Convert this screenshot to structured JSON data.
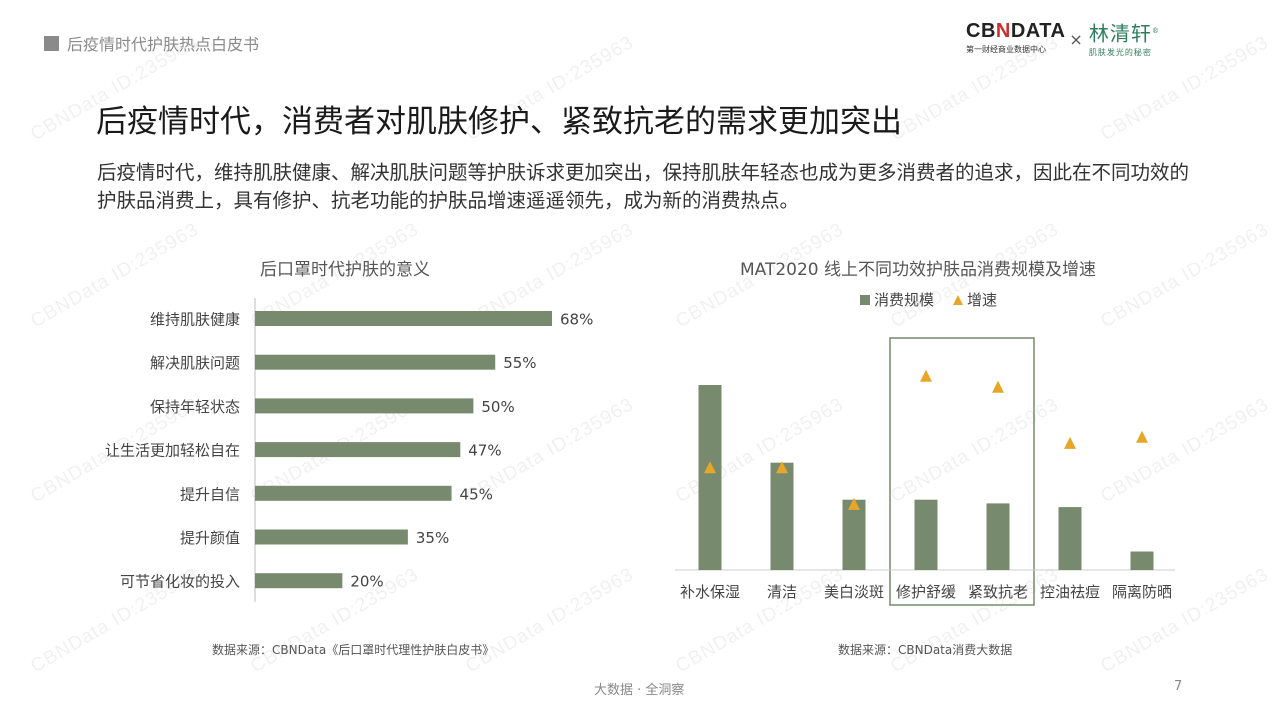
{
  "header": {
    "section": "后疫情时代护肤热点白皮书"
  },
  "logo": {
    "cbn": "CBNDATA",
    "cbn_pre": "CB",
    "cbn_n": "N",
    "cbn_post": "DATA",
    "cbn_sub": "第一财经商业数据中心",
    "x": "×",
    "partner": "林清轩",
    "partner_mark": "®",
    "partner_sub": "肌肤发光的秘密"
  },
  "title": "后疫情时代，消费者对肌肤修护、紧致抗老的需求更加突出",
  "description": "后疫情时代，维持肌肤健康、解决肌肤问题等护肤诉求更加突出，保持肌肤年轻态也成为更多消费者的追求，因此在不同功效的护肤品消费上，具有修护、抗老功能的护肤品增速遥遥领先，成为新的消费热点。",
  "watermark": "CBNData ID:235963",
  "footer": {
    "text": "大数据 · 全洞察",
    "page": "7"
  },
  "colors": {
    "bar": "#778a6e",
    "triangle": "#e8a628",
    "highlight_box": "#778a6e"
  },
  "chart_data": [
    {
      "type": "bar",
      "orientation": "horizontal",
      "title": "后口罩时代护肤的意义",
      "categories": [
        "维持肌肤健康",
        "解决肌肤问题",
        "保持年轻状态",
        "让生活更加轻松自在",
        "提升自信",
        "提升颜值",
        "可节省化妆的投入"
      ],
      "values": [
        68,
        55,
        50,
        47,
        45,
        35,
        20
      ],
      "value_labels": [
        "68%",
        "55%",
        "50%",
        "47%",
        "45%",
        "35%",
        "20%"
      ],
      "xlim": [
        0,
        68
      ],
      "source": "数据来源：CBNData《后口罩时代理性护肤白皮书》"
    },
    {
      "type": "bar",
      "title": "MAT2020 线上不同功效护肤品消费规模及增速",
      "categories": [
        "补水保湿",
        "清洁",
        "美白淡斑",
        "修护舒缓",
        "紧致抗老",
        "控油祛痘",
        "隔离防晒"
      ],
      "series": [
        {
          "name": "消费规模",
          "type": "bar",
          "values": [
            100,
            58,
            38,
            38,
            36,
            34,
            10
          ]
        },
        {
          "name": "增速",
          "type": "marker-triangle",
          "values": [
            35,
            35,
            5,
            110,
            101,
            55,
            60
          ]
        }
      ],
      "legend": "top-center",
      "highlight_categories": [
        "修护舒缓",
        "紧致抗老"
      ],
      "source": "数据来源：CBNData消费大数据"
    }
  ]
}
